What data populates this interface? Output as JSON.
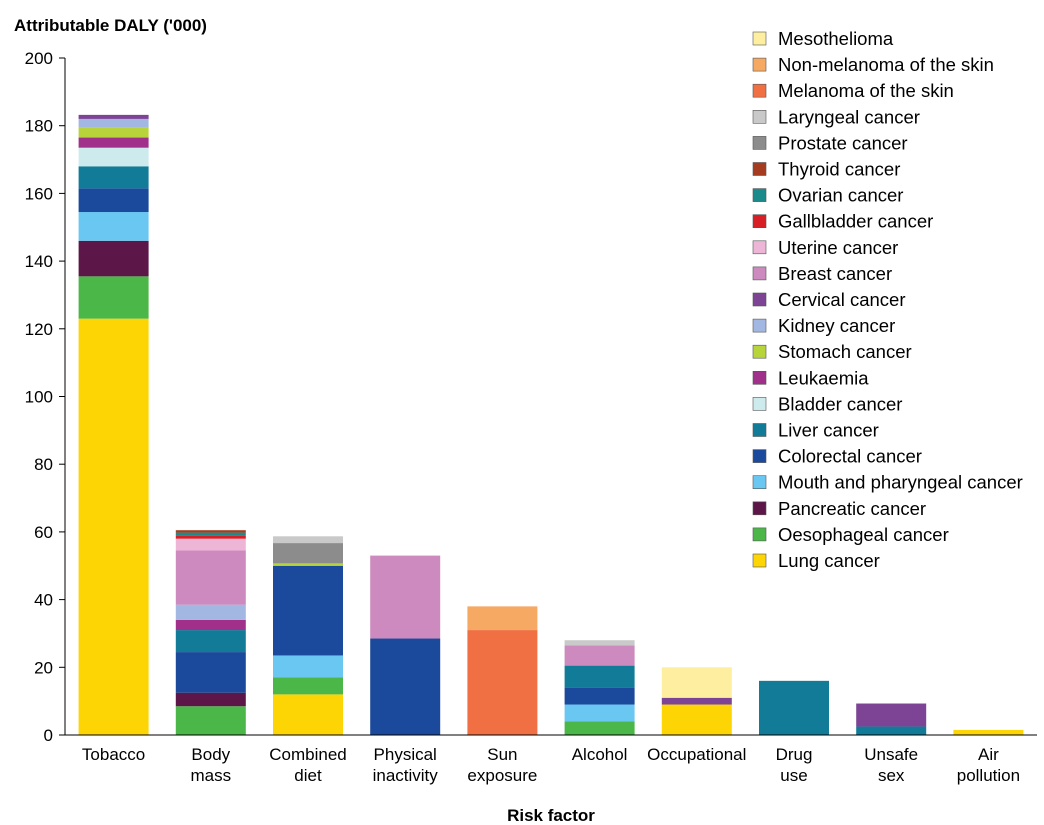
{
  "chart_data": {
    "type": "bar",
    "stacked": true,
    "ylabel": "Attributable DALY ('000)",
    "xlabel": "Risk factor",
    "ylim": [
      0,
      200
    ],
    "yticks": [
      0,
      20,
      40,
      60,
      80,
      100,
      120,
      140,
      160,
      180,
      200
    ],
    "grid": false,
    "legend_position": "top-right",
    "categories": [
      "Tobacco",
      "Body mass",
      "Combined diet",
      "Physical inactivity",
      "Sun exposure",
      "Alcohol",
      "Occupational",
      "Drug use",
      "Unsafe sex",
      "Air pollution"
    ],
    "category_lines": [
      [
        "Tobacco"
      ],
      [
        "Body",
        "mass"
      ],
      [
        "Combined",
        "diet"
      ],
      [
        "Physical",
        "inactivity"
      ],
      [
        "Sun",
        "exposure"
      ],
      [
        "Alcohol"
      ],
      [
        "Occupational"
      ],
      [
        "Drug",
        "use"
      ],
      [
        "Unsafe",
        "sex"
      ],
      [
        "Air",
        "pollution"
      ]
    ],
    "series": [
      {
        "name": "Lung cancer",
        "color": "#fdd505",
        "values": [
          123,
          0,
          12,
          0,
          0,
          0,
          9,
          0,
          0,
          1.5
        ]
      },
      {
        "name": "Oesophageal cancer",
        "color": "#4bb748",
        "values": [
          12.5,
          8.5,
          5,
          0,
          0,
          4,
          0,
          0,
          0,
          0
        ]
      },
      {
        "name": "Pancreatic cancer",
        "color": "#5c1748",
        "values": [
          10.5,
          4,
          0,
          0,
          0,
          0,
          0,
          0,
          0,
          0
        ]
      },
      {
        "name": "Mouth and pharyngeal cancer",
        "color": "#6ac7f2",
        "values": [
          8.5,
          0,
          6.5,
          0,
          0,
          5,
          0,
          0,
          0,
          0
        ]
      },
      {
        "name": "Colorectal cancer",
        "color": "#1b4a9c",
        "values": [
          7,
          12,
          26.5,
          28.5,
          0,
          5,
          0,
          0,
          0,
          0
        ]
      },
      {
        "name": "Liver cancer",
        "color": "#127c98",
        "values": [
          6.5,
          6.5,
          0,
          0,
          0,
          6.5,
          0,
          16,
          2.5,
          0
        ]
      },
      {
        "name": "Bladder cancer",
        "color": "#cdeaec",
        "values": [
          5.5,
          0,
          0,
          0,
          0,
          0,
          0,
          0,
          0,
          0
        ]
      },
      {
        "name": "Leukaemia",
        "color": "#a1308b",
        "values": [
          3,
          3,
          0,
          0,
          0,
          0,
          0,
          0,
          0,
          0
        ]
      },
      {
        "name": "Stomach cancer",
        "color": "#b7d43a",
        "values": [
          3,
          0,
          0.7,
          0,
          0,
          0,
          0,
          0,
          0,
          0
        ]
      },
      {
        "name": "Kidney cancer",
        "color": "#a2b7e1",
        "values": [
          2.5,
          4.5,
          0,
          0,
          0,
          0,
          0,
          0,
          0,
          0
        ]
      },
      {
        "name": "Cervical cancer",
        "color": "#7d4496",
        "values": [
          1.2,
          0,
          0,
          0,
          0,
          0,
          2,
          0,
          6.8,
          0
        ]
      },
      {
        "name": "Breast cancer",
        "color": "#cc8abe",
        "values": [
          0,
          16,
          0,
          24.5,
          0,
          6,
          0,
          0,
          0,
          0
        ]
      },
      {
        "name": "Uterine cancer",
        "color": "#edb6d7",
        "values": [
          0,
          3.5,
          0,
          0,
          0,
          0,
          0,
          0,
          0,
          0
        ]
      },
      {
        "name": "Gallbladder cancer",
        "color": "#d91f26",
        "values": [
          0,
          1,
          0,
          0,
          0,
          0,
          0,
          0,
          0,
          0
        ]
      },
      {
        "name": "Ovarian cancer",
        "color": "#1a8a8a",
        "values": [
          0,
          0.8,
          0,
          0,
          0,
          0,
          0,
          0,
          0,
          0
        ]
      },
      {
        "name": "Thyroid cancer",
        "color": "#a63c1f",
        "values": [
          0,
          0.7,
          0,
          0,
          0,
          0,
          0,
          0,
          0,
          0
        ]
      },
      {
        "name": "Prostate cancer",
        "color": "#8c8c8c",
        "values": [
          0,
          0,
          6,
          0,
          0,
          0,
          0,
          0,
          0,
          0
        ]
      },
      {
        "name": "Laryngeal cancer",
        "color": "#c9c9c9",
        "values": [
          0,
          0,
          2,
          0,
          0,
          1.5,
          0,
          0,
          0,
          0
        ]
      },
      {
        "name": "Melanoma of the skin",
        "color": "#f07044",
        "values": [
          0,
          0,
          0,
          0,
          31,
          0,
          0,
          0,
          0,
          0
        ]
      },
      {
        "name": "Non-melanoma of the skin",
        "color": "#f6a962",
        "values": [
          0,
          0,
          0,
          0,
          7,
          0,
          0,
          0,
          0,
          0
        ]
      },
      {
        "name": "Mesothelioma",
        "color": "#fdeea0",
        "values": [
          0,
          0,
          0,
          0,
          0,
          0,
          9,
          0,
          0,
          0
        ]
      }
    ]
  }
}
